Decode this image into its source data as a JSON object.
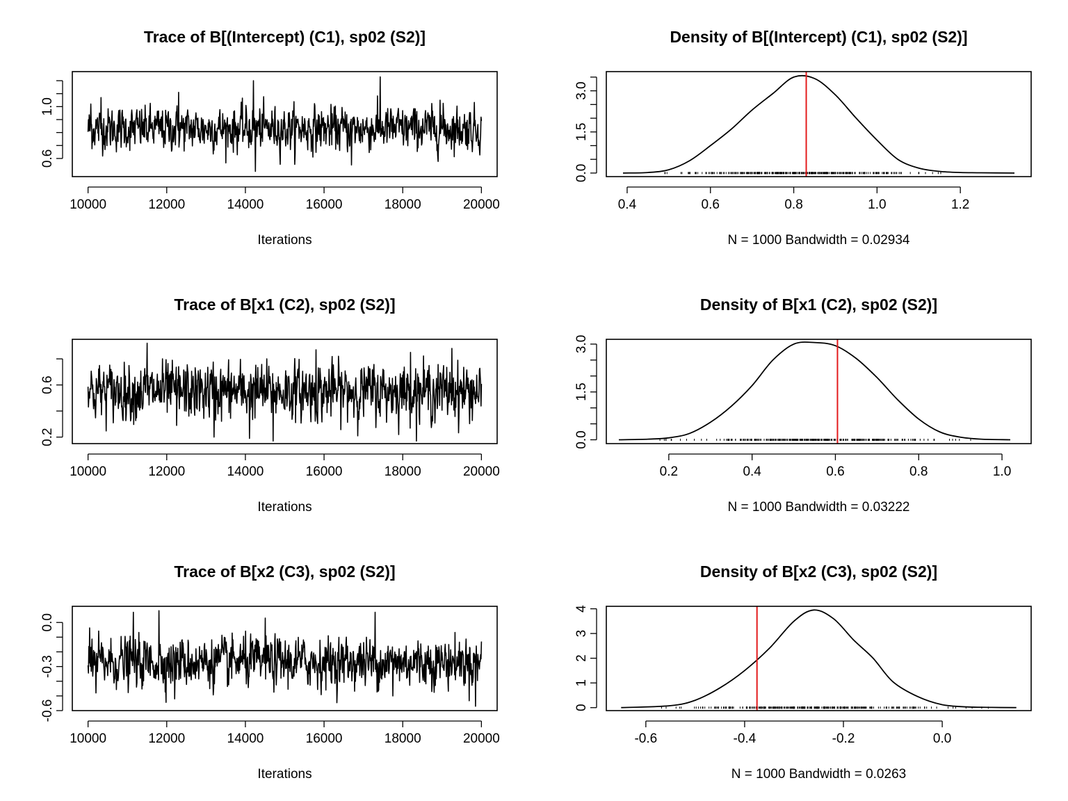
{
  "colors": {
    "line": "#000000",
    "marker": "#e31a1c",
    "rug": "#000000"
  },
  "chart_data": [
    {
      "type": "line",
      "kind": "trace",
      "title": "Trace of B[(Intercept) (C1), sp02 (S2)]",
      "xlabel": "Iterations",
      "ylabel": "",
      "xlim": [
        9600,
        20400
      ],
      "ylim": [
        0.46,
        1.27
      ],
      "xticks": [
        "10000",
        "12000",
        "14000",
        "16000",
        "18000",
        "20000"
      ],
      "yticks": [
        "0.6",
        "1.0"
      ],
      "yticks_minor": [
        0.6,
        0.7,
        0.8,
        0.9,
        1.0,
        1.1,
        1.2
      ],
      "grid": false,
      "series": [
        {
          "x_range": [
            10000,
            20000
          ],
          "n_points": 1000,
          "center": 0.83,
          "spread": 0.085,
          "min": 0.5,
          "max": 1.23,
          "extremes": [
            [
              10070,
              1.02
            ],
            [
              10330,
              1.07
            ],
            [
              14200,
              1.2
            ],
            [
              14250,
              0.5
            ],
            [
              17430,
              1.23
            ],
            [
              16700,
              0.55
            ],
            [
              12300,
              1.11
            ],
            [
              18950,
              1.05
            ]
          ]
        }
      ]
    },
    {
      "type": "line",
      "kind": "density",
      "title": "Density of B[(Intercept) (C1), sp02 (S2)]",
      "xlabel": "N = 1000   Bandwidth = 0.02934",
      "ylabel": "",
      "xlim": [
        0.35,
        1.37
      ],
      "ylim": [
        -0.13,
        3.7
      ],
      "xticks": [
        "0.4",
        "0.6",
        "0.8",
        "1.0",
        "1.2"
      ],
      "yticks": [
        "0.0",
        "1.5",
        "3.0"
      ],
      "yticks_minor": [
        0.0,
        0.5,
        1.0,
        1.5,
        2.0,
        2.5,
        3.0,
        3.5
      ],
      "grid": false,
      "series": [
        {
          "x": [
            0.39,
            0.45,
            0.5,
            0.55,
            0.6,
            0.65,
            0.7,
            0.75,
            0.8,
            0.85,
            0.9,
            0.95,
            1.0,
            1.05,
            1.1,
            1.15,
            1.2,
            1.25,
            1.33
          ],
          "y": [
            0.0,
            0.02,
            0.12,
            0.45,
            1.0,
            1.6,
            2.3,
            2.9,
            3.5,
            3.45,
            2.85,
            2.0,
            1.2,
            0.5,
            0.18,
            0.06,
            0.02,
            0.01,
            0.0
          ]
        }
      ],
      "vline": 0.83,
      "rug": [
        0.47,
        1.25
      ]
    },
    {
      "type": "line",
      "kind": "trace",
      "title": "Trace of B[x1 (C2), sp02 (S2)]",
      "xlabel": "Iterations",
      "ylabel": "",
      "xlim": [
        9600,
        20400
      ],
      "ylim": [
        0.15,
        0.95
      ],
      "xticks": [
        "10000",
        "12000",
        "14000",
        "16000",
        "18000",
        "20000"
      ],
      "yticks": [
        "0.2",
        "0.6"
      ],
      "yticks_minor": [
        0.2,
        0.4,
        0.6,
        0.8
      ],
      "grid": false,
      "series": [
        {
          "x_range": [
            10000,
            20000
          ],
          "n_points": 1000,
          "center": 0.55,
          "spread": 0.11,
          "min": 0.17,
          "max": 0.92,
          "extremes": [
            [
              11500,
              0.92
            ],
            [
              13200,
              0.2
            ],
            [
              14700,
              0.17
            ],
            [
              14100,
              0.19
            ],
            [
              19250,
              0.88
            ],
            [
              18200,
              0.85
            ],
            [
              12250,
              0.29
            ],
            [
              15800,
              0.87
            ]
          ]
        }
      ]
    },
    {
      "type": "line",
      "kind": "density",
      "title": "Density of B[x1 (C2), sp02 (S2)]",
      "xlabel": "N = 1000   Bandwidth = 0.03222",
      "ylabel": "",
      "xlim": [
        0.05,
        1.07
      ],
      "ylim": [
        -0.12,
        3.15
      ],
      "xticks": [
        "0.2",
        "0.4",
        "0.6",
        "0.8",
        "1.0"
      ],
      "yticks": [
        "0.0",
        "1.5",
        "3.0"
      ],
      "yticks_minor": [
        0.0,
        0.5,
        1.0,
        1.5,
        2.0,
        2.5,
        3.0
      ],
      "grid": false,
      "series": [
        {
          "x": [
            0.08,
            0.15,
            0.2,
            0.25,
            0.3,
            0.35,
            0.4,
            0.45,
            0.5,
            0.55,
            0.6,
            0.65,
            0.7,
            0.75,
            0.8,
            0.85,
            0.9,
            0.95,
            1.02
          ],
          "y": [
            0.0,
            0.02,
            0.06,
            0.2,
            0.55,
            1.05,
            1.7,
            2.5,
            3.0,
            3.05,
            2.95,
            2.55,
            1.95,
            1.25,
            0.65,
            0.25,
            0.08,
            0.02,
            0.0
          ]
        }
      ],
      "vline": 0.605,
      "rug": [
        0.17,
        0.93
      ]
    },
    {
      "type": "line",
      "kind": "trace",
      "title": "Trace of B[x2 (C3), sp02 (S2)]",
      "xlabel": "Iterations",
      "ylabel": "",
      "xlim": [
        9600,
        20400
      ],
      "ylim": [
        -0.6,
        0.11
      ],
      "xticks": [
        "10000",
        "12000",
        "14000",
        "16000",
        "18000",
        "20000"
      ],
      "yticks": [
        "-0.6",
        "-0.3",
        "0.0"
      ],
      "yticks_minor": [
        -0.6,
        -0.5,
        -0.4,
        -0.3,
        -0.2,
        -0.1,
        0.0
      ],
      "grid": false,
      "series": [
        {
          "x_range": [
            10000,
            20000
          ],
          "n_points": 1000,
          "center": -0.27,
          "spread": 0.085,
          "min": -0.57,
          "max": 0.08,
          "extremes": [
            [
              11150,
              0.07
            ],
            [
              11800,
              0.08
            ],
            [
              17300,
              0.07
            ],
            [
              12200,
              -0.52
            ],
            [
              19850,
              -0.57
            ],
            [
              17750,
              -0.5
            ],
            [
              10200,
              -0.48
            ],
            [
              14500,
              0.03
            ]
          ]
        }
      ]
    },
    {
      "type": "line",
      "kind": "density",
      "title": "Density of B[x2 (C3), sp02 (S2)]",
      "xlabel": "N = 1000   Bandwidth = 0.0263",
      "ylabel": "",
      "xlim": [
        -0.68,
        0.18
      ],
      "ylim": [
        -0.12,
        4.1
      ],
      "xticks": [
        "-0.6",
        "-0.4",
        "-0.2",
        "0.0"
      ],
      "yticks": [
        "0",
        "1",
        "2",
        "3",
        "4"
      ],
      "yticks_minor": [
        0,
        1,
        2,
        3,
        4
      ],
      "grid": false,
      "series": [
        {
          "x": [
            -0.65,
            -0.55,
            -0.5,
            -0.45,
            -0.4,
            -0.35,
            -0.3,
            -0.26,
            -0.22,
            -0.18,
            -0.14,
            -0.1,
            -0.05,
            0.0,
            0.05,
            0.1,
            0.15
          ],
          "y": [
            0.0,
            0.08,
            0.3,
            0.8,
            1.5,
            2.4,
            3.5,
            3.95,
            3.6,
            2.75,
            2.0,
            1.05,
            0.45,
            0.12,
            0.03,
            0.01,
            0.0
          ]
        }
      ],
      "vline": -0.375,
      "rug": [
        -0.58,
        0.1
      ]
    }
  ]
}
